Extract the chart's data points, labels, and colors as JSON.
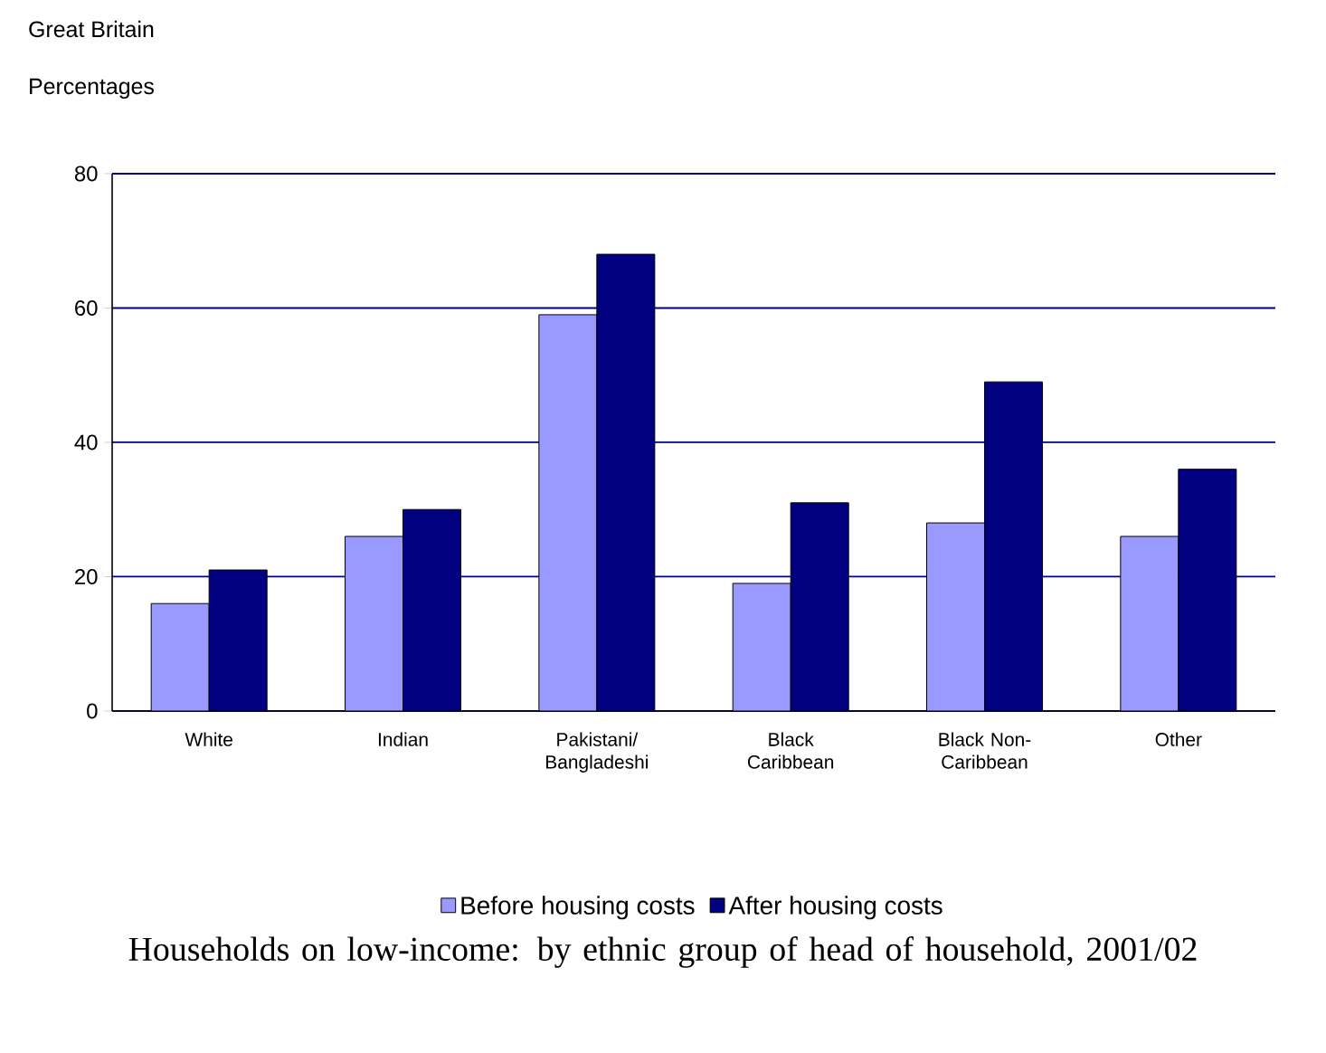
{
  "chart_data": {
    "type": "bar",
    "title": "Households on low-income: by ethnic group of head of household, 2001/02",
    "subtitle": "Great Britain",
    "ylabel": "Percentages",
    "categories": [
      "White",
      "Indian",
      "Pakistani/ Bangladeshi",
      "Black Caribbean",
      "Black Non-Caribbean",
      "Other"
    ],
    "series": [
      {
        "name": "Before housing costs",
        "color": "#9999ff",
        "values": [
          16,
          26,
          59,
          19,
          28,
          26
        ]
      },
      {
        "name": "After housing costs",
        "color": "#000080",
        "values": [
          21,
          30,
          68,
          31,
          49,
          36
        ]
      }
    ],
    "ylim": [
      0,
      80
    ],
    "yticks": [
      0,
      20,
      40,
      60,
      80
    ],
    "grid": "y",
    "legend": "bottom"
  }
}
